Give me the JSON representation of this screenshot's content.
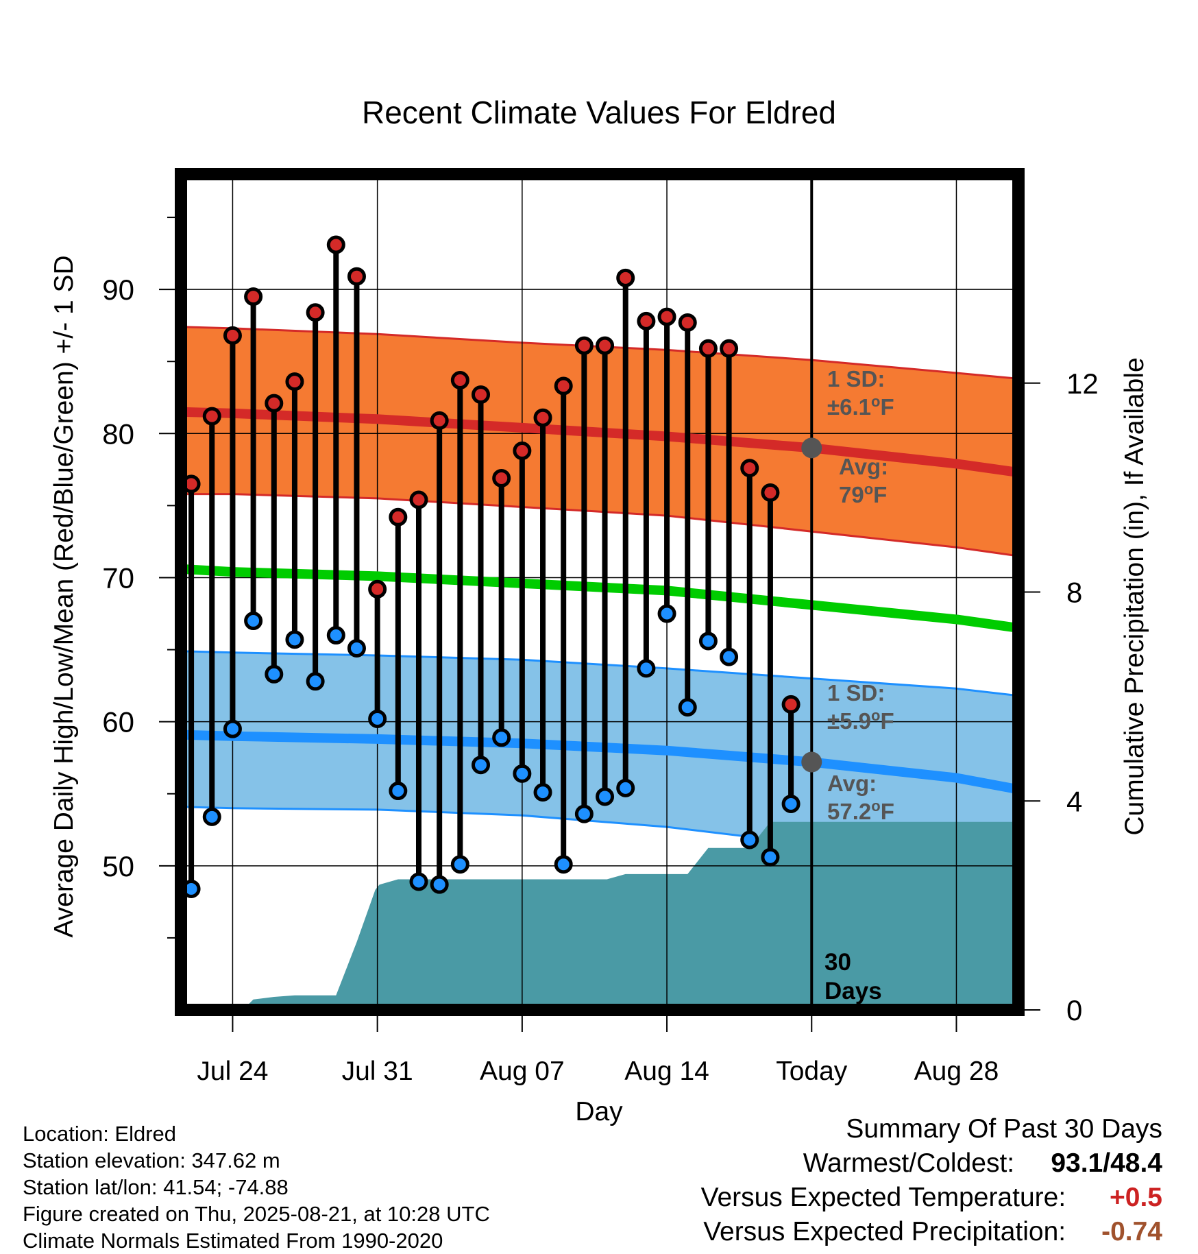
{
  "chart_data": {
    "type": "line",
    "title": "Recent Climate Values For Eldred",
    "xlabel": "Day",
    "ylabel": "Average Daily High/Low/Mean (Red/Blue/Green) +/- 1 SD",
    "y2label": "Cumulative Precipitation (in), If Available",
    "ylim": [
      40,
      98
    ],
    "y2lim": [
      0,
      16
    ],
    "xlim": [
      -30.5,
      10
    ],
    "grid": true,
    "yticks": [
      50,
      60,
      70,
      80,
      90
    ],
    "y2ticks": [
      0,
      4,
      8,
      12
    ],
    "xticks": [
      {
        "day": -28,
        "label": "Jul 24"
      },
      {
        "day": -21,
        "label": "Jul 31"
      },
      {
        "day": -14,
        "label": "Aug 07"
      },
      {
        "day": -7,
        "label": "Aug 14"
      },
      {
        "day": 0,
        "label": "Today"
      },
      {
        "day": 7,
        "label": "Aug 28"
      }
    ],
    "colors": {
      "high_band": "#f57a32",
      "high_line": "#d42a28",
      "low_band": "#85c2e8",
      "low_line": "#1e90ff",
      "mean_line": "#00cc00",
      "precip": "#4a9aa5",
      "high_dot": "#d42a28",
      "low_dot": "#1e90ff",
      "avg_marker": "#555555",
      "annotation": "#555555",
      "precip_diff": "#a0522d",
      "temp_diff": "#cc2222"
    },
    "normals": {
      "day": [
        -30.5,
        -28,
        -21,
        -14,
        -7,
        0,
        7,
        10
      ],
      "high_mean": [
        81.5,
        81.4,
        81.0,
        80.4,
        79.8,
        79.0,
        77.9,
        77.3
      ],
      "high_sd_lower": [
        75.8,
        75.8,
        75.5,
        74.9,
        74.3,
        73.2,
        72.1,
        71.5
      ],
      "high_sd_upper": [
        87.4,
        87.3,
        86.9,
        86.3,
        85.8,
        85.1,
        84.2,
        83.8
      ],
      "mean": [
        70.6,
        70.4,
        70.1,
        69.6,
        69.1,
        68.1,
        67.1,
        66.5
      ],
      "low_mean": [
        59.1,
        59.0,
        58.8,
        58.5,
        58.0,
        57.2,
        56.1,
        55.3
      ],
      "low_sd_lower": [
        54.1,
        54.0,
        53.9,
        53.5,
        52.7,
        51.5,
        50.2,
        49.6
      ],
      "low_sd_upper": [
        64.9,
        64.8,
        64.6,
        64.3,
        63.7,
        63.0,
        62.3,
        61.8
      ]
    },
    "series": [
      {
        "name": "High",
        "values": [
          76.5,
          81.2,
          86.8,
          89.5,
          82.1,
          83.6,
          88.4,
          93.1,
          90.9,
          69.2,
          74.2,
          75.4,
          80.9,
          83.7,
          82.7,
          76.9,
          78.8,
          81.1,
          83.3,
          86.1,
          86.1,
          90.8,
          87.8,
          88.1,
          87.7,
          85.9,
          85.9,
          77.6,
          75.9,
          61.2
        ]
      },
      {
        "name": "Low",
        "values": [
          48.4,
          53.4,
          59.5,
          67.0,
          63.3,
          65.7,
          62.8,
          66.0,
          65.1,
          60.2,
          55.2,
          48.9,
          48.7,
          50.1,
          57.0,
          58.9,
          56.4,
          55.1,
          50.1,
          53.6,
          54.8,
          55.4,
          63.7,
          67.5,
          61.0,
          65.6,
          64.5,
          51.8,
          50.6,
          54.3
        ]
      }
    ],
    "x": [
      -30,
      -29,
      -28,
      -27,
      -26,
      -25,
      -24,
      -23,
      -22,
      -21,
      -20,
      -19,
      -18,
      -17,
      -16,
      -15,
      -14,
      -13,
      -12,
      -11,
      -10,
      -9,
      -8,
      -7,
      -6,
      -5,
      -4,
      -3,
      -2,
      -1
    ],
    "precip": {
      "x": [
        -30.5,
        -27.5,
        -27,
        -26,
        -25,
        -24,
        -23,
        -22,
        -21.1,
        -20.9,
        -20,
        -9.9,
        -9,
        -8,
        -7,
        -6,
        -5,
        -4,
        -3,
        -2,
        -1,
        10
      ],
      "values": [
        0,
        0,
        0.2,
        0.25,
        0.28,
        0.28,
        0.28,
        1.3,
        2.3,
        2.4,
        2.5,
        2.5,
        2.6,
        2.6,
        2.6,
        2.6,
        3.1,
        3.1,
        3.1,
        3.6,
        3.6,
        3.6
      ]
    },
    "annotations": {
      "high_sd": "1 SD:",
      "high_sd_value": "±6.1",
      "high_avg": "Avg:",
      "high_avg_value": "79",
      "low_sd": "1 SD:",
      "low_sd_value": "±5.9",
      "low_avg": "Avg:",
      "low_avg_value": "57.2",
      "unit_sup": "o",
      "unit_f": "F",
      "days_count": "30",
      "days_word": "Days"
    }
  },
  "info": {
    "location": "Location: Eldred",
    "elevation": "Station elevation: 347.62 m",
    "latlon": "Station lat/lon: 41.54; -74.88",
    "created": "Figure created on Thu, 2025-08-21, at 10:28 UTC",
    "normals": "Climate Normals Estimated From 1990-2020"
  },
  "summary": {
    "title": "Summary Of Past 30 Days",
    "warm_cold_label": "Warmest/Coldest:",
    "warm_cold_value": "93.1/48.4",
    "temp_label": "Versus Expected Temperature:",
    "temp_value": "+0.5",
    "precip_label": "Versus Expected Precipitation:",
    "precip_value": "-0.74"
  }
}
